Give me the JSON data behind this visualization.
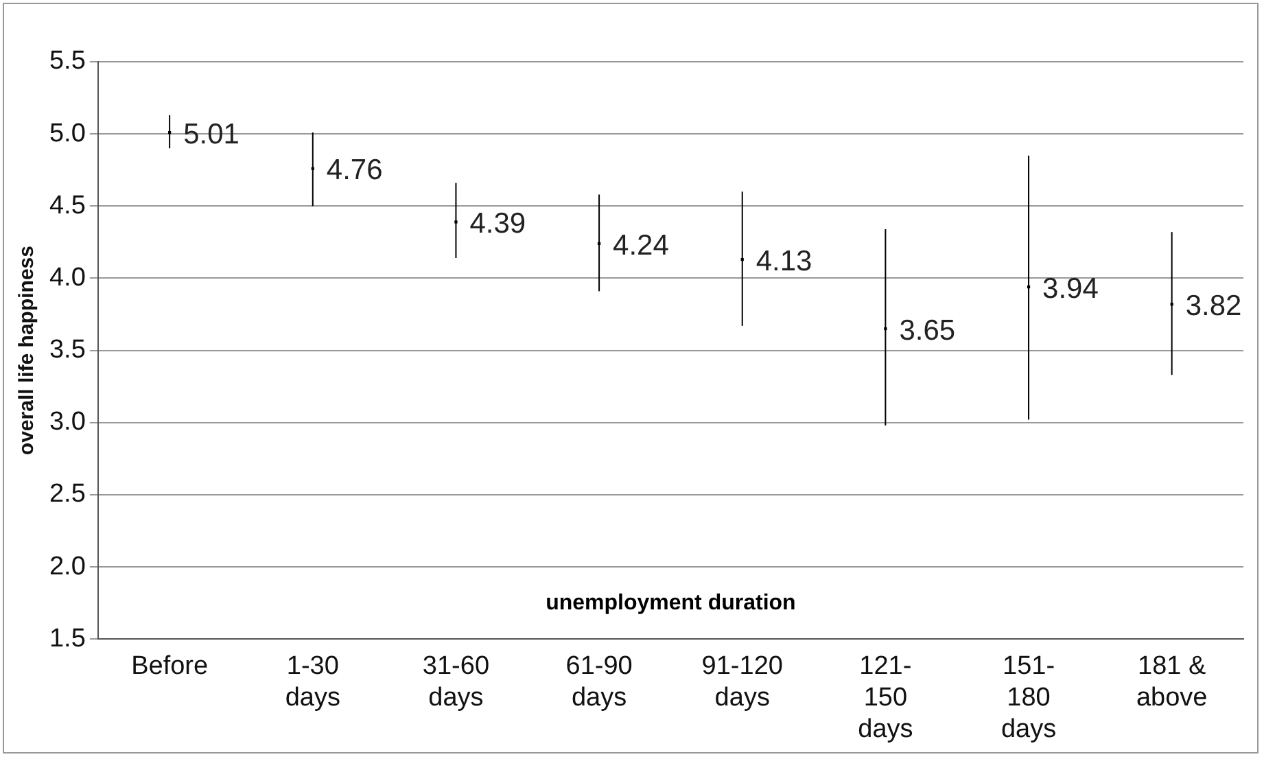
{
  "chart_data": {
    "type": "scatter",
    "xlabel": "unemployment duration",
    "ylabel": "overall life happiness",
    "categories": [
      "Before",
      "1-30 days",
      "31-60 days",
      "61-90 days",
      "91-120 days",
      "121-150 days",
      "151-180 days",
      "181 & above"
    ],
    "values": [
      5.01,
      4.76,
      4.39,
      4.24,
      4.13,
      3.65,
      3.94,
      3.82
    ],
    "errors": [
      [
        4.9,
        5.13
      ],
      [
        4.5,
        5.01
      ],
      [
        4.14,
        4.66
      ],
      [
        3.91,
        4.58
      ],
      [
        3.67,
        4.6
      ],
      [
        2.98,
        4.34
      ],
      [
        3.02,
        4.85
      ],
      [
        3.33,
        4.32
      ]
    ],
    "color": "#000000",
    "marker": "square",
    "data_labels": true,
    "grid": "y",
    "ylim": [
      1.5,
      5.5
    ],
    "yticks": [
      1.5,
      {
        "value": 2,
        "label": "2.0"
      },
      2.5,
      {
        "value": 3,
        "label": "3.0"
      },
      3.5,
      {
        "value": 4,
        "label": "4.0"
      },
      4.5,
      {
        "value": 5,
        "label": "5.0"
      },
      5.5
    ]
  }
}
